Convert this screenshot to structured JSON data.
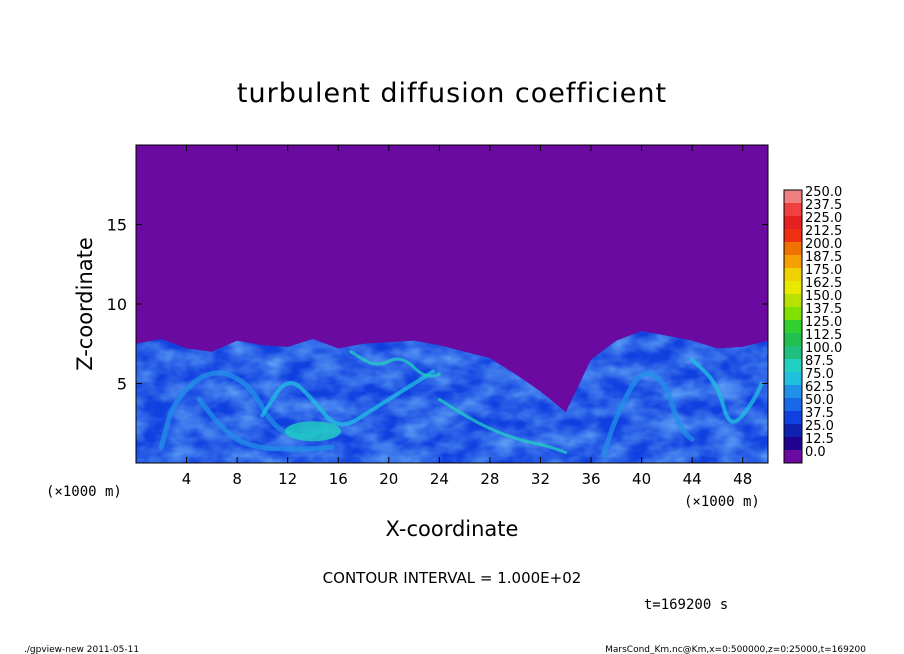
{
  "chart_data": {
    "type": "heatmap",
    "title": "turbulent diffusion coefficient",
    "xlabel": "X-coordinate",
    "ylabel": "Z-coordinate",
    "x_unit": "(×1000 m)",
    "x_unit_right": "(×1000 m)",
    "xlim": [
      0,
      50
    ],
    "ylim": [
      0,
      20
    ],
    "x_ticks": [
      "4",
      "8",
      "12",
      "16",
      "20",
      "24",
      "28",
      "32",
      "36",
      "40",
      "44",
      "48"
    ],
    "y_ticks": [
      "5",
      "10",
      "15"
    ],
    "colorbar": {
      "levels": [
        "250.0",
        "237.5",
        "225.0",
        "212.5",
        "200.0",
        "187.5",
        "175.0",
        "162.5",
        "150.0",
        "137.5",
        "125.0",
        "112.5",
        "100.0",
        "87.5",
        "75.0",
        "62.5",
        "50.0",
        "37.5",
        "25.0",
        "12.5",
        "0.0"
      ],
      "colors": [
        "#f08080",
        "#f04040",
        "#e62020",
        "#f03010",
        "#f07000",
        "#f5a000",
        "#f0d000",
        "#e8e800",
        "#b8e000",
        "#80e000",
        "#30d030",
        "#20c050",
        "#20c080",
        "#20d0c0",
        "#20c0e0",
        "#2090e8",
        "#1868e8",
        "#1040e0",
        "#1020b0",
        "#200090",
        "#6a0aa0"
      ]
    },
    "background_value": 0,
    "background_color": "#6a0aa0",
    "turbulent_layer_top_z": {
      "x": [
        0,
        2,
        4,
        6,
        8,
        10,
        12,
        14,
        16,
        18,
        20,
        22,
        24,
        26,
        28,
        30,
        32,
        34,
        36,
        38,
        40,
        42,
        44,
        46,
        48,
        50
      ],
      "z": [
        7.5,
        7.8,
        7.2,
        7.0,
        7.7,
        7.4,
        7.3,
        7.8,
        7.2,
        7.5,
        7.6,
        7.7,
        7.4,
        7.0,
        6.6,
        5.6,
        4.5,
        3.2,
        6.5,
        7.7,
        8.3,
        8.0,
        7.7,
        7.2,
        7.3,
        7.7
      ]
    }
  },
  "annotations": {
    "contour_interval": "CONTOUR INTERVAL = 1.000E+02",
    "time": "t=169200 s",
    "footer_left": "./gpview-new   2011-05-11",
    "footer_right": "MarsCond_Km.nc@Km,x=0:500000,z=0:25000,t=169200"
  }
}
